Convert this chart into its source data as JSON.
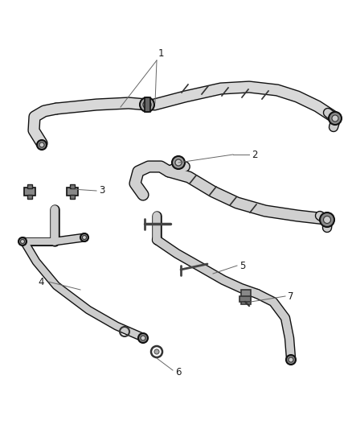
{
  "background_color": "#ffffff",
  "line_color": "#1a1a1a",
  "label_color": "#1a1a1a",
  "leader_color": "#666666",
  "fig_width": 4.38,
  "fig_height": 5.33,
  "dpi": 100
}
